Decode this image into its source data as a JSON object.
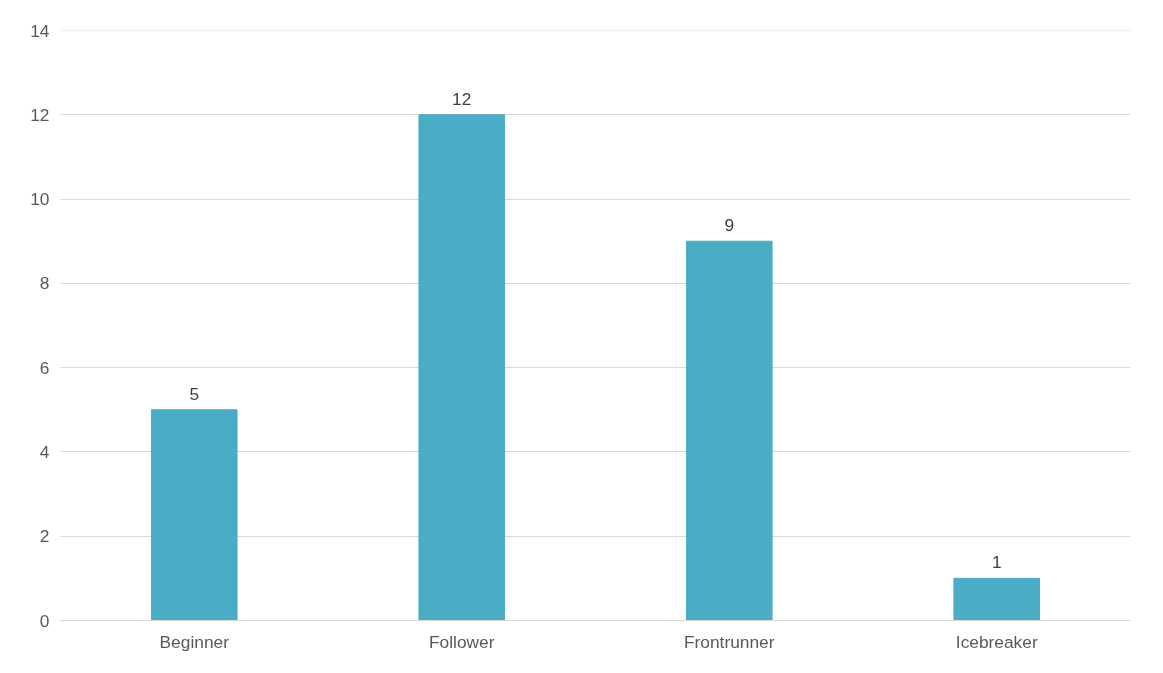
{
  "chart_data": {
    "type": "bar",
    "categories": [
      "Beginner",
      "Follower",
      "Frontrunner",
      "Icebreaker"
    ],
    "values": [
      5,
      12,
      9,
      1
    ],
    "color": "#4bacc6",
    "ylim": [
      0,
      14
    ],
    "yticks": [
      0,
      2,
      4,
      6,
      8,
      10,
      12,
      14
    ],
    "grid": "y",
    "data_labels": true
  }
}
